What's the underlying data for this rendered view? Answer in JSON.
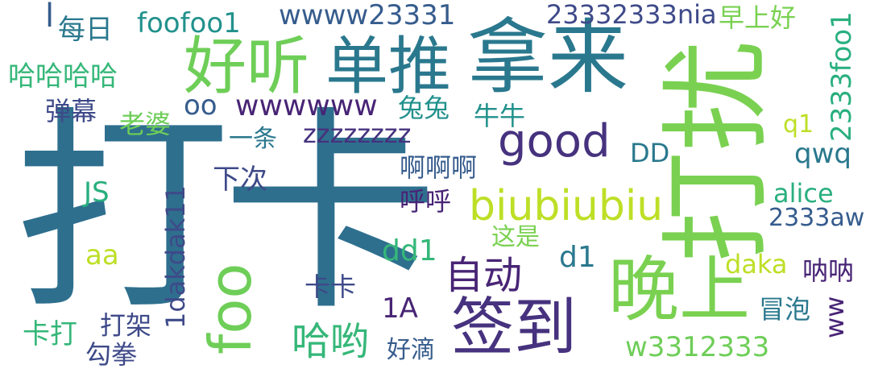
{
  "palette": {
    "teal_dark": "#2e6f8e",
    "teal": "#2a788e",
    "teal_mid": "#21918c",
    "green_teal": "#29af7f",
    "green": "#35b779",
    "lime_green": "#6ece58",
    "light_green": "#7ad151",
    "yellow_green": "#bddf26",
    "purple_dark": "#482475",
    "purple": "#46327e",
    "indigo": "#3e4a89",
    "slate": "#365c8d"
  },
  "words": [
    "打卡",
    "打扰",
    "拿来",
    "晚上",
    "好听",
    "单推",
    "签到",
    "foo",
    "good",
    "biubiubiu",
    "自动",
    "哈哟",
    "wwwwww",
    "wwww23331",
    "23332333nia",
    "2333foo1",
    "foofoo1",
    "每日",
    "早上好",
    "哈哈哈哈",
    "老婆",
    "兔兔",
    "牛牛",
    "弹幕",
    "oo",
    "一条",
    "zzzzzzzz",
    "啊啊啊",
    "呼呼",
    "下次",
    "JS",
    "1dakdak11",
    "aa",
    "dd1",
    "这是",
    "d1",
    "卡卡",
    "1A",
    "打架",
    "卡打",
    "勾拳",
    "好滴",
    "w3312333",
    "冒泡",
    "ww",
    "呐呐",
    "daka",
    "2333aw",
    "alice",
    "qwq",
    "DD",
    "q1",
    "l"
  ]
}
